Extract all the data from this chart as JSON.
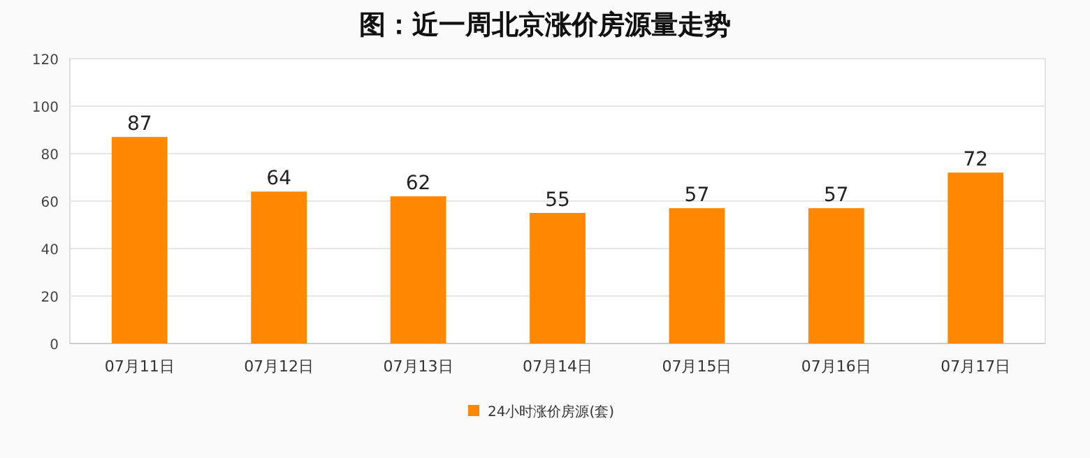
{
  "chart_data": {
    "type": "bar",
    "title": "图：近一周北京涨价房源量走势",
    "categories": [
      "07月11日",
      "07月12日",
      "07月13日",
      "07月14日",
      "07月15日",
      "07月16日",
      "07月17日"
    ],
    "series": [
      {
        "name": "24小时涨价房源(套)",
        "color": "#ff8800",
        "values": [
          87,
          64,
          62,
          55,
          57,
          57,
          72
        ]
      }
    ],
    "ylim": [
      0,
      120
    ],
    "yticks": [
      0,
      20,
      40,
      60,
      80,
      100,
      120
    ],
    "grid": "y",
    "legend": "bottom",
    "data_labels": true
  }
}
